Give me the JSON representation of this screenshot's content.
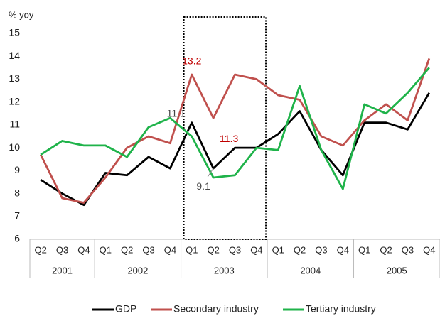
{
  "chart_data": {
    "type": "line",
    "y_label": "% yoy",
    "categories": [
      "Q2",
      "Q3",
      "Q4",
      "Q1",
      "Q2",
      "Q3",
      "Q4",
      "Q1",
      "Q2",
      "Q3",
      "Q4",
      "Q1",
      "Q2",
      "Q3",
      "Q4",
      "Q1",
      "Q2",
      "Q3",
      "Q4"
    ],
    "groups": [
      {
        "label": "2001",
        "count": 3
      },
      {
        "label": "2002",
        "count": 4
      },
      {
        "label": "2003",
        "count": 4
      },
      {
        "label": "2004",
        "count": 4
      },
      {
        "label": "2005",
        "count": 4
      }
    ],
    "highlight": "2003",
    "series": [
      {
        "name": "GDP",
        "color": "#000000",
        "values": [
          8.6,
          8.0,
          7.5,
          8.9,
          8.8,
          9.6,
          9.1,
          11.1,
          9.1,
          10.0,
          10.0,
          10.6,
          11.6,
          9.9,
          8.8,
          11.1,
          11.1,
          10.8,
          12.4
        ]
      },
      {
        "name": "Secondary industry",
        "color": "#c0504d",
        "values": [
          9.7,
          7.8,
          7.6,
          8.7,
          10.0,
          10.5,
          10.2,
          13.2,
          11.3,
          13.2,
          13.0,
          12.3,
          12.1,
          10.5,
          10.1,
          11.2,
          11.9,
          11.2,
          13.9
        ]
      },
      {
        "name": "Tertiary industry",
        "color": "#1fb34a",
        "values": [
          9.7,
          10.3,
          10.1,
          10.1,
          9.6,
          10.9,
          11.3,
          10.5,
          8.7,
          8.8,
          10.0,
          9.9,
          12.7,
          9.9,
          8.2,
          11.9,
          11.5,
          12.4,
          13.5
        ]
      }
    ],
    "annotations": [
      {
        "text": "13.2",
        "series": 1,
        "index": 7,
        "color": "#c00000"
      },
      {
        "text": "11.3",
        "series": 1,
        "index": 8,
        "color": "#c00000"
      },
      {
        "text": "11.1",
        "series": 0,
        "index": 7,
        "color": "#444444"
      },
      {
        "text": "9.1",
        "series": 0,
        "index": 8,
        "color": "#444444"
      }
    ],
    "ylim": [
      6,
      15
    ],
    "yticks": [
      6,
      7,
      8,
      9,
      10,
      11,
      12,
      13,
      14,
      15
    ]
  }
}
